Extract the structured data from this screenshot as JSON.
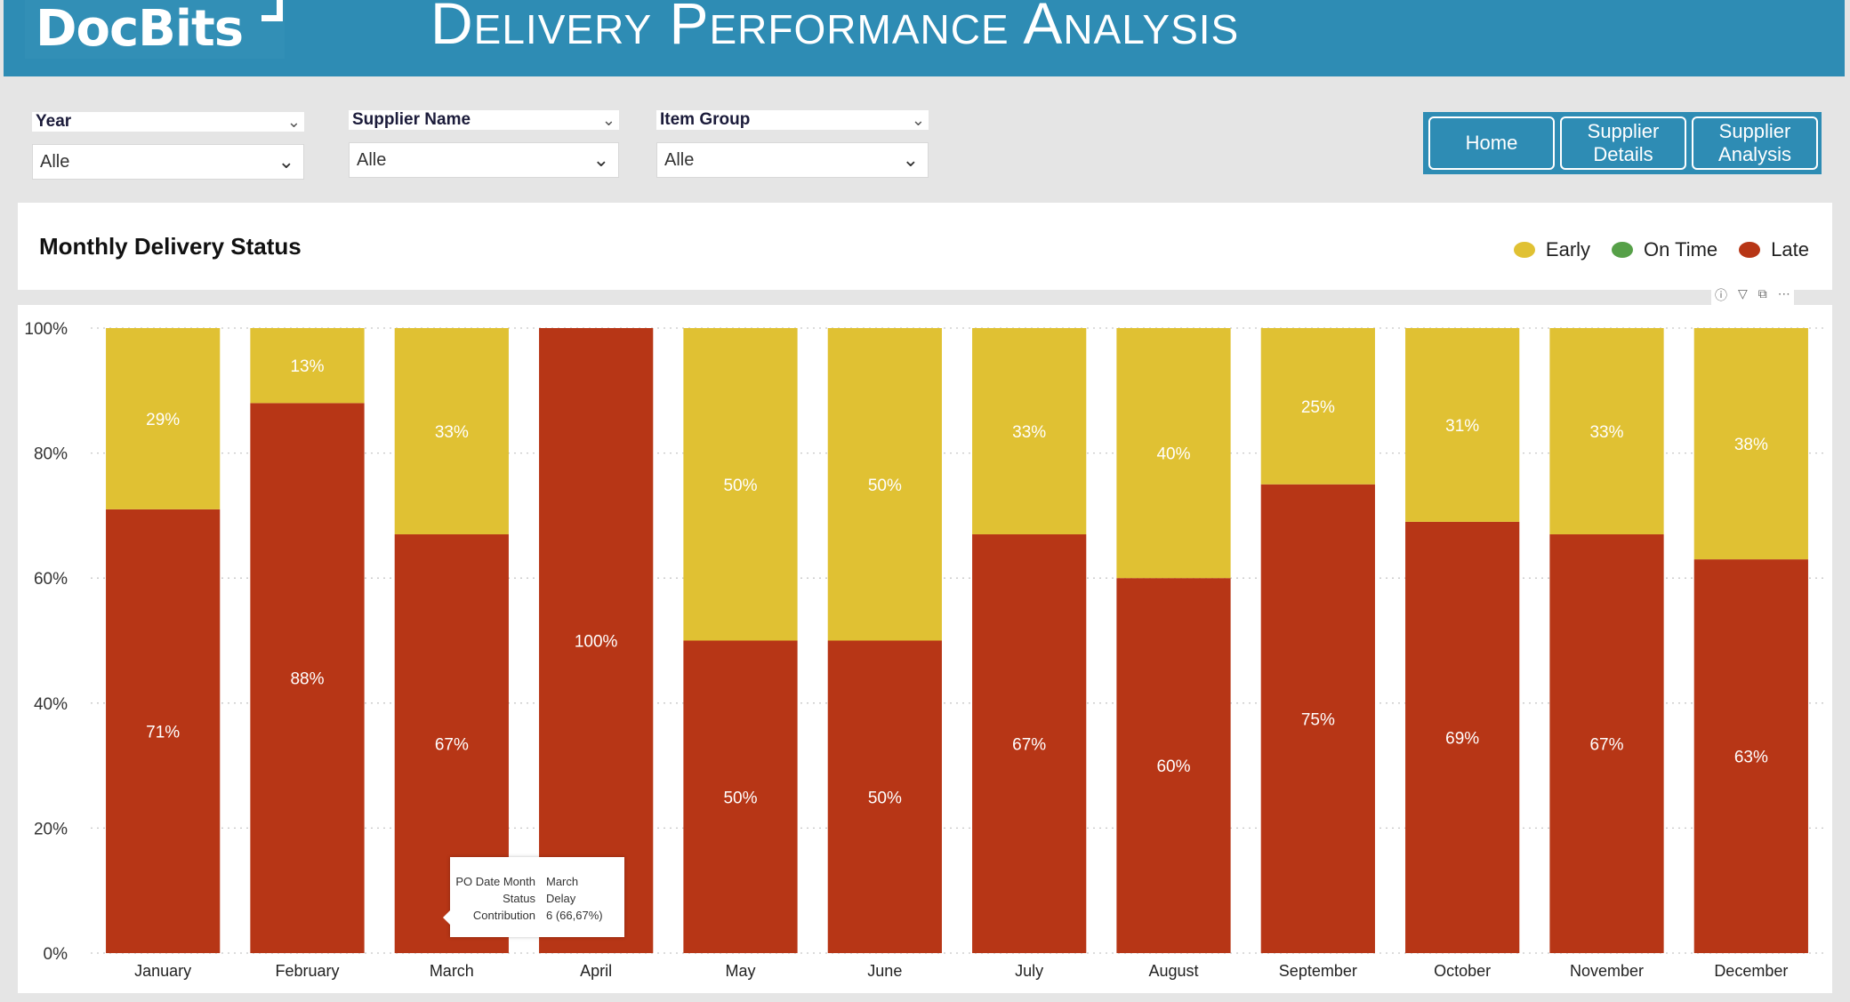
{
  "header": {
    "logo_text": "DocBits",
    "title": "Delivery Performance Analysis"
  },
  "slicers": [
    {
      "label": "Year",
      "value": "Alle"
    },
    {
      "label": "Supplier Name",
      "value": "Alle"
    },
    {
      "label": "Item Group",
      "value": "Alle"
    }
  ],
  "nav": {
    "home": "Home",
    "supplier_details": "Supplier Details",
    "supplier_analysis": "Supplier Analysis"
  },
  "card": {
    "title": "Monthly Delivery Status",
    "legend": [
      {
        "name": "Early",
        "color": "#e0c133"
      },
      {
        "name": "On Time",
        "color": "#56a048"
      },
      {
        "name": "Late",
        "color": "#b73616"
      }
    ],
    "tool_icons": [
      "info-icon",
      "filter-icon",
      "focus-mode-icon",
      "more-options-icon"
    ]
  },
  "chart_data": {
    "type": "bar",
    "stacked": "100%",
    "categories": [
      "January",
      "February",
      "March",
      "April",
      "May",
      "June",
      "July",
      "August",
      "September",
      "October",
      "November",
      "December"
    ],
    "series": [
      {
        "name": "Late",
        "color": "#b73616",
        "values": [
          71,
          88,
          67,
          100,
          50,
          50,
          67,
          60,
          75,
          69,
          67,
          63
        ]
      },
      {
        "name": "Early",
        "color": "#e0c133",
        "values": [
          29,
          13,
          33,
          0,
          50,
          50,
          33,
          40,
          25,
          31,
          33,
          38
        ]
      }
    ],
    "y_ticks": [
      "0%",
      "20%",
      "40%",
      "60%",
      "80%",
      "100%"
    ],
    "ylim": [
      0,
      100
    ],
    "grid": true,
    "legend": "top-right"
  },
  "tooltip": {
    "rows": [
      {
        "key": "PO Date Month",
        "value": "March"
      },
      {
        "key": "Status",
        "value": "Delay"
      },
      {
        "key": "Contribution",
        "value": "6 (66,67%)"
      }
    ]
  }
}
